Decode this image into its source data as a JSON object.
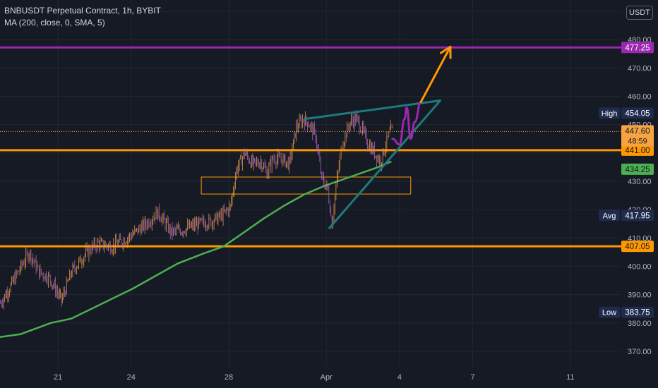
{
  "legend": {
    "symbol_line": "BNBUSDT Perpetual Contract, 1h, BYBIT",
    "indicator_line": "MA (200, close, 0, SMA, 5)"
  },
  "currency_button": "USDT",
  "colors": {
    "background": "#161a25",
    "grid": "#222631",
    "axis_text": "#b2b5be",
    "candle_up": "#f7a440",
    "candle_down": "#b76cc9",
    "ma": "#4caf50",
    "support_line": "#ff9800",
    "target_line": "#9c27b0",
    "wedge": "#1f7a80",
    "projection_arrow": "#ff9800",
    "projection_wave": "#9c27b0",
    "label_dark": "#1e2b4d"
  },
  "chart_data": {
    "type": "candlestick",
    "x_labels": [
      {
        "label": "21",
        "bar": 57
      },
      {
        "label": "24",
        "bar": 129
      },
      {
        "label": "28",
        "bar": 225
      },
      {
        "label": "Apr",
        "bar": 321
      },
      {
        "label": "4",
        "bar": 393
      },
      {
        "label": "7",
        "bar": 465
      },
      {
        "label": "11",
        "bar": 561
      }
    ],
    "y_ticks": [
      370,
      380,
      390,
      400,
      410,
      420,
      430,
      440,
      450,
      460,
      470,
      480,
      490
    ],
    "ylim": [
      364.5,
      494
    ],
    "price_path": [
      [
        0,
        387
      ],
      [
        10,
        393
      ],
      [
        28,
        405
      ],
      [
        38,
        398
      ],
      [
        48,
        396
      ],
      [
        60,
        388
      ],
      [
        70,
        398
      ],
      [
        85,
        405
      ],
      [
        95,
        408
      ],
      [
        110,
        407
      ],
      [
        125,
        410
      ],
      [
        140,
        414
      ],
      [
        155,
        419
      ],
      [
        168,
        412
      ],
      [
        180,
        413
      ],
      [
        195,
        415
      ],
      [
        208,
        416
      ],
      [
        218,
        418
      ],
      [
        226,
        421
      ],
      [
        232,
        434
      ],
      [
        240,
        440
      ],
      [
        248,
        436
      ],
      [
        256,
        437
      ],
      [
        262,
        433
      ],
      [
        268,
        438
      ],
      [
        276,
        438
      ],
      [
        284,
        436
      ],
      [
        291,
        449
      ],
      [
        298,
        452
      ],
      [
        304,
        450
      ],
      [
        310,
        446
      ],
      [
        316,
        431
      ],
      [
        322,
        427
      ],
      [
        326,
        415
      ],
      [
        330,
        428
      ],
      [
        336,
        443
      ],
      [
        344,
        451
      ],
      [
        350,
        452
      ],
      [
        356,
        448
      ],
      [
        362,
        443
      ],
      [
        368,
        440
      ],
      [
        374,
        437
      ],
      [
        378,
        442
      ],
      [
        384,
        448
      ],
      [
        386,
        447.6
      ]
    ],
    "moving_average": {
      "name": "MA (200, close, 0, SMA, 5)",
      "points": [
        [
          0,
          375
        ],
        [
          20,
          376
        ],
        [
          35,
          378
        ],
        [
          50,
          380
        ],
        [
          70,
          381.5
        ],
        [
          90,
          385
        ],
        [
          110,
          388.5
        ],
        [
          130,
          392
        ],
        [
          150,
          396
        ],
        [
          175,
          401
        ],
        [
          200,
          404.5
        ],
        [
          220,
          407
        ],
        [
          240,
          412
        ],
        [
          260,
          417
        ],
        [
          280,
          421.5
        ],
        [
          300,
          425.5
        ],
        [
          320,
          428.5
        ],
        [
          340,
          431
        ],
        [
          360,
          433.5
        ],
        [
          372,
          435
        ],
        [
          385,
          437
        ]
      ]
    },
    "horizontal_levels": [
      {
        "price": 477.25,
        "label": "477.25",
        "color": "#9c27b0",
        "style": "solid"
      },
      {
        "price": 441.0,
        "label": "441.00",
        "color": "#ff9800",
        "style": "solid"
      },
      {
        "price": 407.05,
        "label": "407.05",
        "color": "#ff9800",
        "style": "solid"
      }
    ],
    "consolidation_box": {
      "bar_start": 198,
      "bar_end": 404,
      "price_top": 431.5,
      "price_bottom": 425.5
    },
    "wedge_lines": [
      {
        "from": [
          300,
          452
        ],
        "to": [
          433,
          458.5
        ]
      },
      {
        "from": [
          324,
          413.5
        ],
        "to": [
          433,
          458.5
        ]
      }
    ],
    "projection_wave": [
      [
        386,
        445
      ],
      [
        393,
        443
      ],
      [
        398,
        452
      ],
      [
        400,
        456
      ],
      [
        404,
        445
      ],
      [
        408,
        451
      ],
      [
        414,
        458
      ]
    ],
    "projection_arrow": {
      "from": [
        414,
        458
      ],
      "to": [
        443,
        477.5
      ]
    },
    "price_labels": [
      {
        "tag": "High",
        "value": "454.05",
        "price": 454.05,
        "bg": "#1e2b4d"
      },
      {
        "tag": "",
        "value": "447.60",
        "sub": "48:59",
        "price": 447.6,
        "bg": "#f7a440"
      },
      {
        "tag": "",
        "value": "434.25",
        "price": 434.25,
        "bg": "#4caf50"
      },
      {
        "tag": "Avg",
        "value": "417.95",
        "price": 417.95,
        "bg": "#1e2b4d"
      },
      {
        "tag": "Low",
        "value": "383.75",
        "price": 383.75,
        "bg": "#1e2b4d"
      }
    ],
    "last_price": 447.6
  }
}
